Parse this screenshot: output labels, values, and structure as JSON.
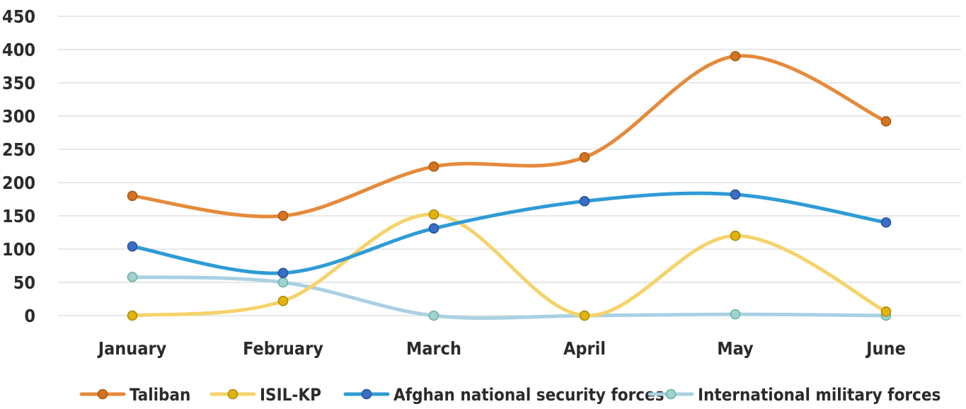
{
  "chart_data": {
    "type": "line",
    "title": "",
    "xlabel": "",
    "ylabel": "",
    "categories": [
      "January",
      "February",
      "March",
      "April",
      "May",
      "June"
    ],
    "ylim": [
      0,
      450
    ],
    "yticks": [
      0,
      50,
      100,
      150,
      200,
      250,
      300,
      350,
      400,
      450
    ],
    "grid": true,
    "smooth": true,
    "legend": "bottom",
    "series": [
      {
        "name": "Taliban",
        "color": "#E58A3A",
        "marker_fill": "#D4731F",
        "marker_stroke": "#A95A16",
        "values": [
          180,
          150,
          224,
          238,
          390,
          292
        ]
      },
      {
        "name": "ISIL-KP",
        "color": "#F5D36A",
        "marker_fill": "#E0B40E",
        "marker_stroke": "#B08A08",
        "values": [
          0,
          22,
          152,
          0,
          120,
          6
        ]
      },
      {
        "name": "Afghan national security forces",
        "color": "#2E9BD6",
        "marker_fill": "#3A6FC4",
        "marker_stroke": "#24549B",
        "values": [
          104,
          64,
          131,
          172,
          182,
          140
        ]
      },
      {
        "name": "International military forces",
        "color": "#A9D1E3",
        "marker_fill": "#9FD3D0",
        "marker_stroke": "#6AB0A6",
        "values": [
          58,
          50,
          0,
          0,
          2,
          0
        ]
      }
    ]
  }
}
